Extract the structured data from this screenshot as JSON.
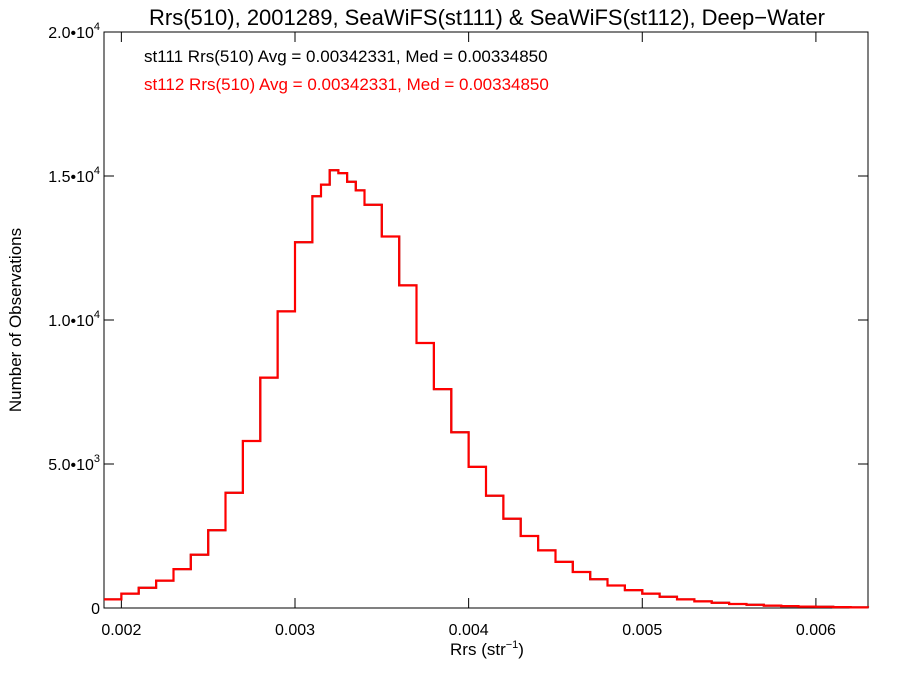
{
  "chart_data": {
    "type": "line",
    "title": "Rrs(510), 2001289, SeaWiFS(st111) & SeaWiFS(st112), Deep−Water",
    "xlabel": "Rrs (str",
    "xlabel_sup": "−1",
    "xlabel_close": ")",
    "ylabel": "Number of Observations",
    "xlim": [
      0.0019,
      0.0063
    ],
    "ylim": [
      0,
      20000
    ],
    "x_ticks": [
      {
        "value": 0.002,
        "label": "0.002"
      },
      {
        "value": 0.003,
        "label": "0.003"
      },
      {
        "value": 0.004,
        "label": "0.004"
      },
      {
        "value": 0.005,
        "label": "0.005"
      },
      {
        "value": 0.006,
        "label": "0.006"
      }
    ],
    "y_ticks": [
      {
        "value": 0,
        "mant": "0",
        "exp": ""
      },
      {
        "value": 5000,
        "mant": "5.0•10",
        "exp": "3"
      },
      {
        "value": 10000,
        "mant": "1.0•10",
        "exp": "4"
      },
      {
        "value": 15000,
        "mant": "1.5•10",
        "exp": "4"
      },
      {
        "value": 20000,
        "mant": "2.0•10",
        "exp": "4"
      }
    ],
    "annotations": [
      {
        "text": "st111 Rrs(510) Avg = 0.00342331, Med = 0.00334850",
        "color": "#000000"
      },
      {
        "text": "st112 Rrs(510) Avg = 0.00342331, Med = 0.00334850",
        "color": "#ff0000"
      }
    ],
    "series": [
      {
        "name": "st111",
        "color": "#000000",
        "x": [
          0.0019,
          0.002,
          0.0021,
          0.0022,
          0.0023,
          0.0024,
          0.0025,
          0.0026,
          0.0027,
          0.0028,
          0.0029,
          0.003,
          0.0031,
          0.00315,
          0.0032,
          0.00325,
          0.0033,
          0.00335,
          0.0034,
          0.0035,
          0.0036,
          0.0037,
          0.0038,
          0.0039,
          0.004,
          0.0041,
          0.0042,
          0.0043,
          0.0044,
          0.0045,
          0.0046,
          0.0047,
          0.0048,
          0.0049,
          0.005,
          0.0051,
          0.0052,
          0.0053,
          0.0054,
          0.0055,
          0.0056,
          0.0057,
          0.0058,
          0.0059,
          0.006,
          0.0061,
          0.0062,
          0.0063
        ],
        "y": [
          300,
          500,
          700,
          950,
          1350,
          1850,
          2700,
          4000,
          5800,
          8000,
          10300,
          12700,
          14300,
          14700,
          15200,
          15100,
          14800,
          14500,
          14000,
          12900,
          11200,
          9200,
          7600,
          6100,
          4900,
          3900,
          3100,
          2500,
          2000,
          1600,
          1250,
          1000,
          780,
          620,
          500,
          390,
          300,
          230,
          180,
          140,
          110,
          85,
          65,
          50,
          40,
          30,
          20,
          15
        ]
      },
      {
        "name": "st112",
        "color": "#ff0000",
        "x": [
          0.0019,
          0.002,
          0.0021,
          0.0022,
          0.0023,
          0.0024,
          0.0025,
          0.0026,
          0.0027,
          0.0028,
          0.0029,
          0.003,
          0.0031,
          0.00315,
          0.0032,
          0.00325,
          0.0033,
          0.00335,
          0.0034,
          0.0035,
          0.0036,
          0.0037,
          0.0038,
          0.0039,
          0.004,
          0.0041,
          0.0042,
          0.0043,
          0.0044,
          0.0045,
          0.0046,
          0.0047,
          0.0048,
          0.0049,
          0.005,
          0.0051,
          0.0052,
          0.0053,
          0.0054,
          0.0055,
          0.0056,
          0.0057,
          0.0058,
          0.0059,
          0.006,
          0.0061,
          0.0062,
          0.0063
        ],
        "y": [
          300,
          500,
          700,
          950,
          1350,
          1850,
          2700,
          4000,
          5800,
          8000,
          10300,
          12700,
          14300,
          14700,
          15200,
          15100,
          14800,
          14500,
          14000,
          12900,
          11200,
          9200,
          7600,
          6100,
          4900,
          3900,
          3100,
          2500,
          2000,
          1600,
          1250,
          1000,
          780,
          620,
          500,
          390,
          300,
          230,
          180,
          140,
          110,
          85,
          65,
          50,
          40,
          30,
          20,
          15
        ]
      }
    ],
    "grid": false,
    "legend": "top-left"
  }
}
